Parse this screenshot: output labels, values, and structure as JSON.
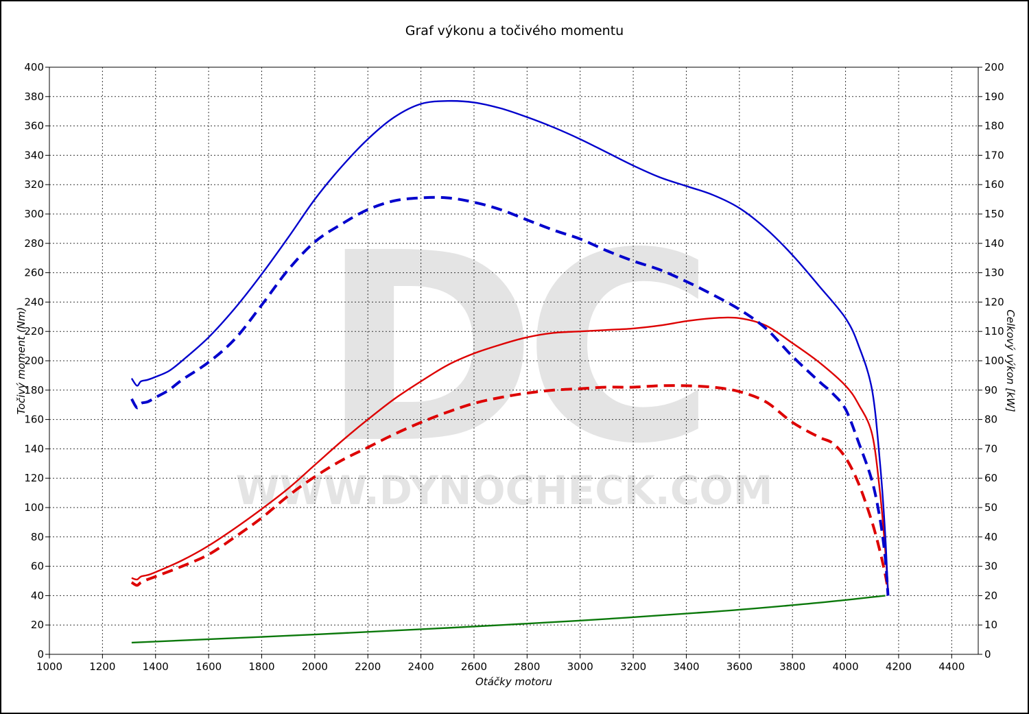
{
  "chart_data": {
    "type": "line",
    "title": "Graf výkonu a točivého momentu",
    "xlabel": "Otáčky motoru",
    "ylabel_left": "Točivý moment (Nm)",
    "ylabel_right": "Celkový výkon [kW]",
    "xlim": [
      1000,
      4500
    ],
    "ylim_left": [
      0,
      400
    ],
    "ylim_right": [
      0,
      200
    ],
    "x_ticks": [
      1000,
      1200,
      1400,
      1600,
      1800,
      2000,
      2200,
      2400,
      2600,
      2800,
      3000,
      3200,
      3400,
      3600,
      3800,
      4000,
      4200,
      4400
    ],
    "y_ticks_left": [
      0,
      20,
      40,
      60,
      80,
      100,
      120,
      140,
      160,
      180,
      200,
      220,
      240,
      260,
      280,
      300,
      320,
      340,
      360,
      380,
      400
    ],
    "y_ticks_right": [
      0,
      10,
      20,
      30,
      40,
      50,
      60,
      70,
      80,
      90,
      100,
      110,
      120,
      130,
      140,
      150,
      160,
      170,
      180,
      190,
      200
    ],
    "grid": true,
    "series": [
      {
        "axis": "left",
        "color": "#0000cc",
        "style": "solid",
        "x": [
          1310,
          1330,
          1345,
          1370,
          1400,
          1450,
          1500,
          1600,
          1700,
          1800,
          1900,
          2000,
          2100,
          2200,
          2300,
          2400,
          2500,
          2600,
          2700,
          2800,
          2900,
          3000,
          3100,
          3200,
          3300,
          3400,
          3500,
          3600,
          3700,
          3800,
          3900,
          4000,
          4050,
          4100,
          4130,
          4150,
          4160
        ],
        "values": [
          188,
          183,
          186,
          187,
          189,
          193,
          200,
          216,
          236,
          259,
          284,
          310,
          332,
          351,
          366,
          375,
          377,
          376,
          372,
          366,
          359,
          351,
          342,
          333,
          325,
          319,
          313,
          304,
          290,
          272,
          251,
          229,
          210,
          180,
          130,
          80,
          40
        ]
      },
      {
        "axis": "left",
        "color": "#0000cc",
        "style": "dashed",
        "x": [
          1310,
          1330,
          1345,
          1370,
          1400,
          1450,
          1500,
          1600,
          1700,
          1800,
          1900,
          2000,
          2100,
          2200,
          2300,
          2400,
          2500,
          2600,
          2700,
          2800,
          2900,
          3000,
          3100,
          3200,
          3300,
          3400,
          3500,
          3600,
          3700,
          3800,
          3900,
          3950,
          4000,
          4050,
          4100,
          4130,
          4150,
          4160
        ],
        "values": [
          174,
          168,
          171,
          172,
          175,
          180,
          187,
          199,
          215,
          238,
          262,
          281,
          293,
          303,
          309,
          311,
          311,
          308,
          303,
          296,
          289,
          283,
          275,
          268,
          262,
          254,
          245,
          235,
          222,
          203,
          186,
          178,
          167,
          144,
          118,
          92,
          65,
          40
        ]
      },
      {
        "axis": "right",
        "color": "#dd0000",
        "style": "solid",
        "x": [
          1310,
          1330,
          1345,
          1370,
          1400,
          1500,
          1600,
          1700,
          1800,
          1900,
          2000,
          2100,
          2200,
          2300,
          2400,
          2500,
          2600,
          2700,
          2800,
          2900,
          3000,
          3100,
          3200,
          3300,
          3400,
          3500,
          3600,
          3700,
          3800,
          3900,
          4000,
          4050,
          4100,
          4130,
          4150,
          4160
        ],
        "values": [
          26,
          25.5,
          26.5,
          27,
          28,
          32,
          37,
          43,
          49.5,
          56.5,
          64.5,
          72.5,
          80,
          87,
          93,
          98.5,
          102.5,
          105.5,
          108,
          109.5,
          110,
          110.5,
          111,
          112,
          113.5,
          114.5,
          114.5,
          112,
          106,
          99.5,
          91.5,
          85,
          75,
          55,
          35,
          22
        ]
      },
      {
        "axis": "right",
        "color": "#dd0000",
        "style": "dashed",
        "x": [
          1310,
          1330,
          1345,
          1370,
          1400,
          1500,
          1600,
          1700,
          1800,
          1900,
          2000,
          2100,
          2200,
          2300,
          2400,
          2500,
          2600,
          2700,
          2800,
          2900,
          3000,
          3100,
          3200,
          3300,
          3400,
          3500,
          3600,
          3700,
          3800,
          3900,
          3950,
          4000,
          4050,
          4100,
          4130,
          4150,
          4160
        ],
        "values": [
          24.5,
          23.5,
          24.5,
          25.5,
          26.5,
          30,
          34,
          40,
          46.5,
          54,
          60.5,
          66,
          70.5,
          75,
          79,
          82.5,
          85.5,
          87.5,
          89,
          90,
          90.5,
          91,
          91,
          91.5,
          91.5,
          91,
          89.5,
          86,
          79,
          74,
          72,
          67,
          58,
          45,
          35,
          27,
          22
        ]
      },
      {
        "axis": "left",
        "color": "#0a780a",
        "style": "solid",
        "x": [
          1310,
          1500,
          2000,
          2500,
          3000,
          3500,
          3800,
          4000,
          4150
        ],
        "values": [
          8,
          9.5,
          13.5,
          18,
          23,
          29,
          33.5,
          37,
          40
        ]
      }
    ]
  },
  "watermark": {
    "logo": "DC",
    "url": "WWW.DYNOCHECK.COM"
  }
}
